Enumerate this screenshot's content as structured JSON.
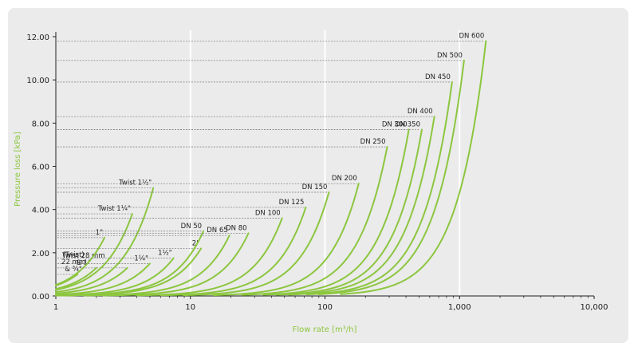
{
  "colors": {
    "curve": "#8cc63f",
    "axis_label": "#8cc63f",
    "background": "#ebebeb",
    "grid": "#ffffff",
    "leader": "#777777"
  },
  "chart_data": {
    "type": "line",
    "xlabel": "Flow rate [m³/h]",
    "ylabel": "Pressure loss [kPa]",
    "x_scale": "log",
    "xlim": [
      1,
      10000
    ],
    "ylim": [
      0,
      12
    ],
    "x_ticks": [
      "1",
      "10",
      "100",
      "1,000",
      "10,000"
    ],
    "y_ticks": [
      "0.00",
      "2.00",
      "4.00",
      "6.00",
      "8.00",
      "10.00",
      "12.00"
    ],
    "grid": true,
    "series": [
      {
        "name": "(Twist)\n22 mm\n& ¾\"",
        "x_end": 1.45,
        "y_end": 1.0
      },
      {
        "name": "Twist 28 mm\n& 1\"",
        "x_end": 2.0,
        "y_end": 1.3
      },
      {
        "name": "1\"",
        "x_end": 2.3,
        "y_end": 2.7
      },
      {
        "name": "",
        "x_end": 3.4,
        "y_end": 1.3
      },
      {
        "name": "Twist 1¼\"",
        "x_end": 3.7,
        "y_end": 3.8
      },
      {
        "name": "1¼\"",
        "x_end": 5.0,
        "y_end": 1.5
      },
      {
        "name": "Twist 1½\"",
        "x_end": 5.3,
        "y_end": 5.0
      },
      {
        "name": "1½\"",
        "x_end": 7.5,
        "y_end": 1.75
      },
      {
        "name": "2\"",
        "x_end": 12.0,
        "y_end": 2.2
      },
      {
        "name": "DN 50",
        "x_end": 12.5,
        "y_end": 3.0
      },
      {
        "name": "DN 65",
        "x_end": 19.5,
        "y_end": 2.8
      },
      {
        "name": "DN 80",
        "x_end": 27.0,
        "y_end": 2.9
      },
      {
        "name": "DN 100",
        "x_end": 48.0,
        "y_end": 3.6
      },
      {
        "name": "DN 125",
        "x_end": 72.0,
        "y_end": 4.1
      },
      {
        "name": "DN 150",
        "x_end": 107.0,
        "y_end": 4.8
      },
      {
        "name": "DN 200",
        "x_end": 178.0,
        "y_end": 5.2
      },
      {
        "name": "DN 250",
        "x_end": 290.0,
        "y_end": 6.9
      },
      {
        "name": "DN 300",
        "x_end": 420.0,
        "y_end": 7.7
      },
      {
        "name": "DN 350",
        "x_end": 525.0,
        "y_end": 7.7
      },
      {
        "name": "DN 400",
        "x_end": 650.0,
        "y_end": 8.3
      },
      {
        "name": "DN 450",
        "x_end": 880.0,
        "y_end": 9.9
      },
      {
        "name": "DN 500",
        "x_end": 1080.0,
        "y_end": 10.9
      },
      {
        "name": "DN 600",
        "x_end": 1570.0,
        "y_end": 11.8
      }
    ]
  }
}
